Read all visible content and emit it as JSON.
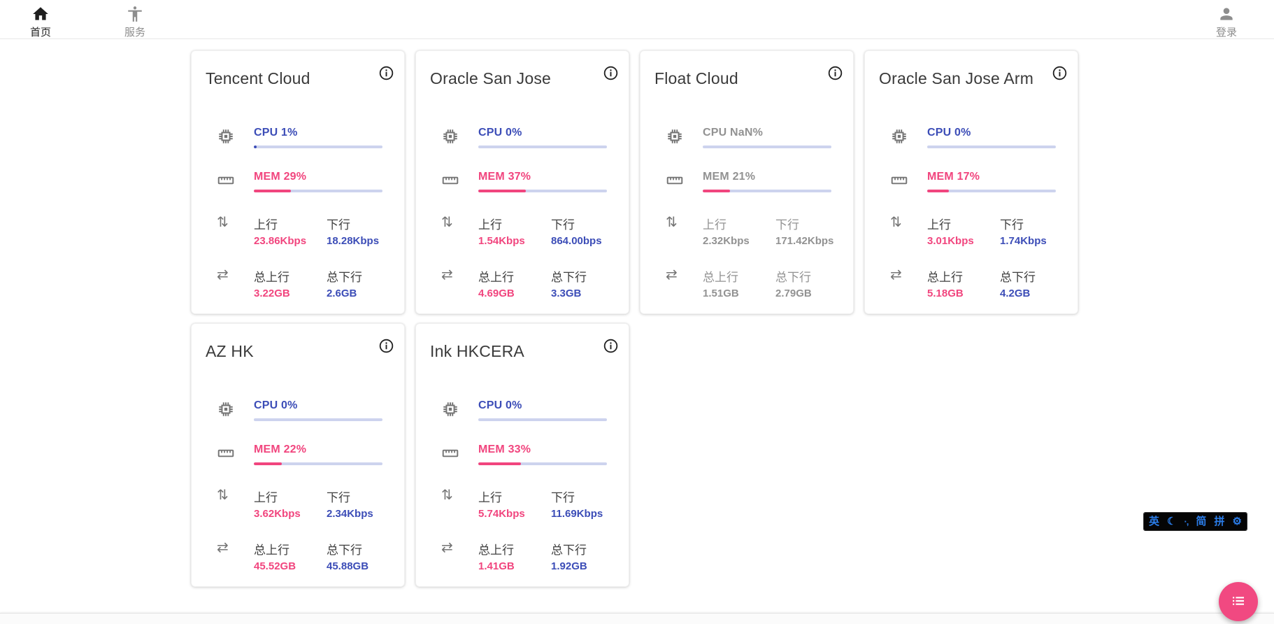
{
  "nav": {
    "home": "首页",
    "services": "服务",
    "login": "登录"
  },
  "labels": {
    "up": "上行",
    "down": "下行",
    "total_up": "总上行",
    "total_down": "总下行"
  },
  "servers": [
    {
      "name": "Tencent Cloud",
      "cpu_text": "CPU 1%",
      "cpu_pct": 1,
      "mem_text": "MEM 29%",
      "mem_pct": 29,
      "up": "23.86Kbps",
      "down": "18.28Kbps",
      "total_up": "3.22GB",
      "total_down": "2.6GB",
      "offline": false
    },
    {
      "name": "Oracle San Jose",
      "cpu_text": "CPU 0%",
      "cpu_pct": 0,
      "mem_text": "MEM 37%",
      "mem_pct": 37,
      "up": "1.54Kbps",
      "down": "864.00bps",
      "total_up": "4.69GB",
      "total_down": "3.3GB",
      "offline": false
    },
    {
      "name": "Float Cloud",
      "cpu_text": "CPU NaN%",
      "cpu_pct": 0,
      "mem_text": "MEM 21%",
      "mem_pct": 21,
      "up": "2.32Kbps",
      "down": "171.42Kbps",
      "total_up": "1.51GB",
      "total_down": "2.79GB",
      "offline": true
    },
    {
      "name": "Oracle San Jose Arm",
      "cpu_text": "CPU 0%",
      "cpu_pct": 0,
      "mem_text": "MEM 17%",
      "mem_pct": 17,
      "up": "3.01Kbps",
      "down": "1.74Kbps",
      "total_up": "5.18GB",
      "total_down": "4.2GB",
      "offline": false
    },
    {
      "name": "AZ HK",
      "cpu_text": "CPU 0%",
      "cpu_pct": 0,
      "mem_text": "MEM 22%",
      "mem_pct": 22,
      "up": "3.62Kbps",
      "down": "2.34Kbps",
      "total_up": "45.52GB",
      "total_down": "45.88GB",
      "offline": false
    },
    {
      "name": "Ink HKCERA",
      "cpu_text": "CPU 0%",
      "cpu_pct": 0,
      "mem_text": "MEM 33%",
      "mem_pct": 33,
      "up": "5.74Kbps",
      "down": "11.69Kbps",
      "total_up": "1.41GB",
      "total_down": "1.92GB",
      "offline": false
    }
  ],
  "colors": {
    "accent_blue": "#3c4db7",
    "accent_pink": "#f1457e",
    "bar_track": "#cdd3ee",
    "offline_gray": "#929292",
    "fab_pink": "#f14981",
    "ime_blue": "#2b7de9"
  },
  "ime_bar": {
    "english_mode": "英",
    "moon_icon": "☾",
    "punctuation_mode": "·,",
    "simplified_mode": "简",
    "pinyin_mode": "拼",
    "settings_icon": "⚙"
  }
}
